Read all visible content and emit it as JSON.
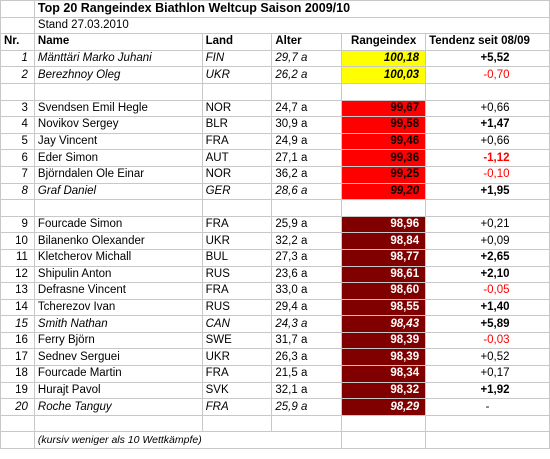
{
  "title": "Top 20 Rangeindex Biathlon Weltcup Saison 2009/10",
  "subtitle": "Stand 27.03.2010",
  "headers": {
    "nr": "Nr.",
    "name": "Name",
    "land": "Land",
    "alter": "Alter",
    "index": "Rangeindex",
    "tendenz": "Tendenz seit 08/09"
  },
  "groups": [
    [
      {
        "nr": "1",
        "name": "Mänttäri Marko Juhani",
        "land": "FIN",
        "alter": "29,7 a",
        "index": "100,18",
        "tendenz": "+5,52",
        "italic": true,
        "tierColor": "#ffff00",
        "trend": "up"
      },
      {
        "nr": "2",
        "name": "Berezhnoy Oleg",
        "land": "UKR",
        "alter": "26,2 a",
        "index": "100,03",
        "tendenz": "-0,70",
        "italic": true,
        "tierColor": "#ffff00",
        "trend": "down"
      }
    ],
    [
      {
        "nr": "3",
        "name": "Svendsen Emil Hegle",
        "land": "NOR",
        "alter": "24,7 a",
        "index": "99,67",
        "tendenz": "+0,66",
        "italic": false,
        "tierColor": "#ff0000",
        "trend": "flat"
      },
      {
        "nr": "4",
        "name": "Novikov Sergey",
        "land": "BLR",
        "alter": "30,9 a",
        "index": "99,58",
        "tendenz": "+1,47",
        "italic": false,
        "tierColor": "#ff0000",
        "trend": "up"
      },
      {
        "nr": "5",
        "name": "Jay Vincent",
        "land": "FRA",
        "alter": "24,9 a",
        "index": "99,46",
        "tendenz": "+0,66",
        "italic": false,
        "tierColor": "#ff0000",
        "trend": "flat"
      },
      {
        "nr": "6",
        "name": "Eder Simon",
        "land": "AUT",
        "alter": "27,1 a",
        "index": "99,36",
        "tendenz": "-1,12",
        "italic": false,
        "tierColor": "#ff0000",
        "trend": "down-bold"
      },
      {
        "nr": "7",
        "name": "Björndalen Ole Einar",
        "land": "NOR",
        "alter": "36,2 a",
        "index": "99,25",
        "tendenz": "-0,10",
        "italic": false,
        "tierColor": "#ff0000",
        "trend": "down"
      },
      {
        "nr": "8",
        "name": "Graf Daniel",
        "land": "GER",
        "alter": "28,6 a",
        "index": "99,20",
        "tendenz": "+1,95",
        "italic": true,
        "tierColor": "#ff0000",
        "trend": "up"
      }
    ],
    [
      {
        "nr": "9",
        "name": "Fourcade Simon",
        "land": "FRA",
        "alter": "25,9 a",
        "index": "98,96",
        "tendenz": "+0,21",
        "italic": false,
        "tierColor": "#800000",
        "trend": "flat"
      },
      {
        "nr": "10",
        "name": "Bilanenko Olexander",
        "land": "UKR",
        "alter": "32,2 a",
        "index": "98,84",
        "tendenz": "+0,09",
        "italic": false,
        "tierColor": "#800000",
        "trend": "flat"
      },
      {
        "nr": "11",
        "name": "Kletcherov Michall",
        "land": "BUL",
        "alter": "27,3 a",
        "index": "98,77",
        "tendenz": "+2,65",
        "italic": false,
        "tierColor": "#800000",
        "trend": "up"
      },
      {
        "nr": "12",
        "name": "Shipulin Anton",
        "land": "RUS",
        "alter": "23,6 a",
        "index": "98,61",
        "tendenz": "+2,10",
        "italic": false,
        "tierColor": "#800000",
        "trend": "up"
      },
      {
        "nr": "13",
        "name": "Defrasne Vincent",
        "land": "FRA",
        "alter": "33,0 a",
        "index": "98,60",
        "tendenz": "-0,05",
        "italic": false,
        "tierColor": "#800000",
        "trend": "down"
      },
      {
        "nr": "14",
        "name": "Tcherezov Ivan",
        "land": "RUS",
        "alter": "29,4 a",
        "index": "98,55",
        "tendenz": "+1,40",
        "italic": false,
        "tierColor": "#800000",
        "trend": "up"
      },
      {
        "nr": "15",
        "name": "Smith Nathan",
        "land": "CAN",
        "alter": "24,3 a",
        "index": "98,43",
        "tendenz": "+5,89",
        "italic": true,
        "tierColor": "#800000",
        "trend": "up"
      },
      {
        "nr": "16",
        "name": "Ferry Björn",
        "land": "SWE",
        "alter": "31,7 a",
        "index": "98,39",
        "tendenz": "-0,03",
        "italic": false,
        "tierColor": "#800000",
        "trend": "down"
      },
      {
        "nr": "17",
        "name": "Sednev Serguei",
        "land": "UKR",
        "alter": "26,3 a",
        "index": "98,39",
        "tendenz": "+0,52",
        "italic": false,
        "tierColor": "#800000",
        "trend": "flat"
      },
      {
        "nr": "18",
        "name": "Fourcade Martin",
        "land": "FRA",
        "alter": "21,5 a",
        "index": "98,34",
        "tendenz": "+0,17",
        "italic": false,
        "tierColor": "#800000",
        "trend": "flat"
      },
      {
        "nr": "19",
        "name": "Hurajt Pavol",
        "land": "SVK",
        "alter": "32,1 a",
        "index": "98,32",
        "tendenz": "+1,92",
        "italic": false,
        "tierColor": "#800000",
        "trend": "up"
      },
      {
        "nr": "20",
        "name": "Roche Tanguy",
        "land": "FRA",
        "alter": "25,9 a",
        "index": "98,29",
        "tendenz": "-",
        "italic": true,
        "tierColor": "#800000",
        "trend": "none"
      }
    ]
  ],
  "note": "(kursiv weniger als 10 Wettkämpfe)",
  "colors": {
    "gold": "#ffff00",
    "red": "#ff0000",
    "darkred": "#800000",
    "negative": "#ff0000",
    "grid": "#c8c8c8"
  }
}
